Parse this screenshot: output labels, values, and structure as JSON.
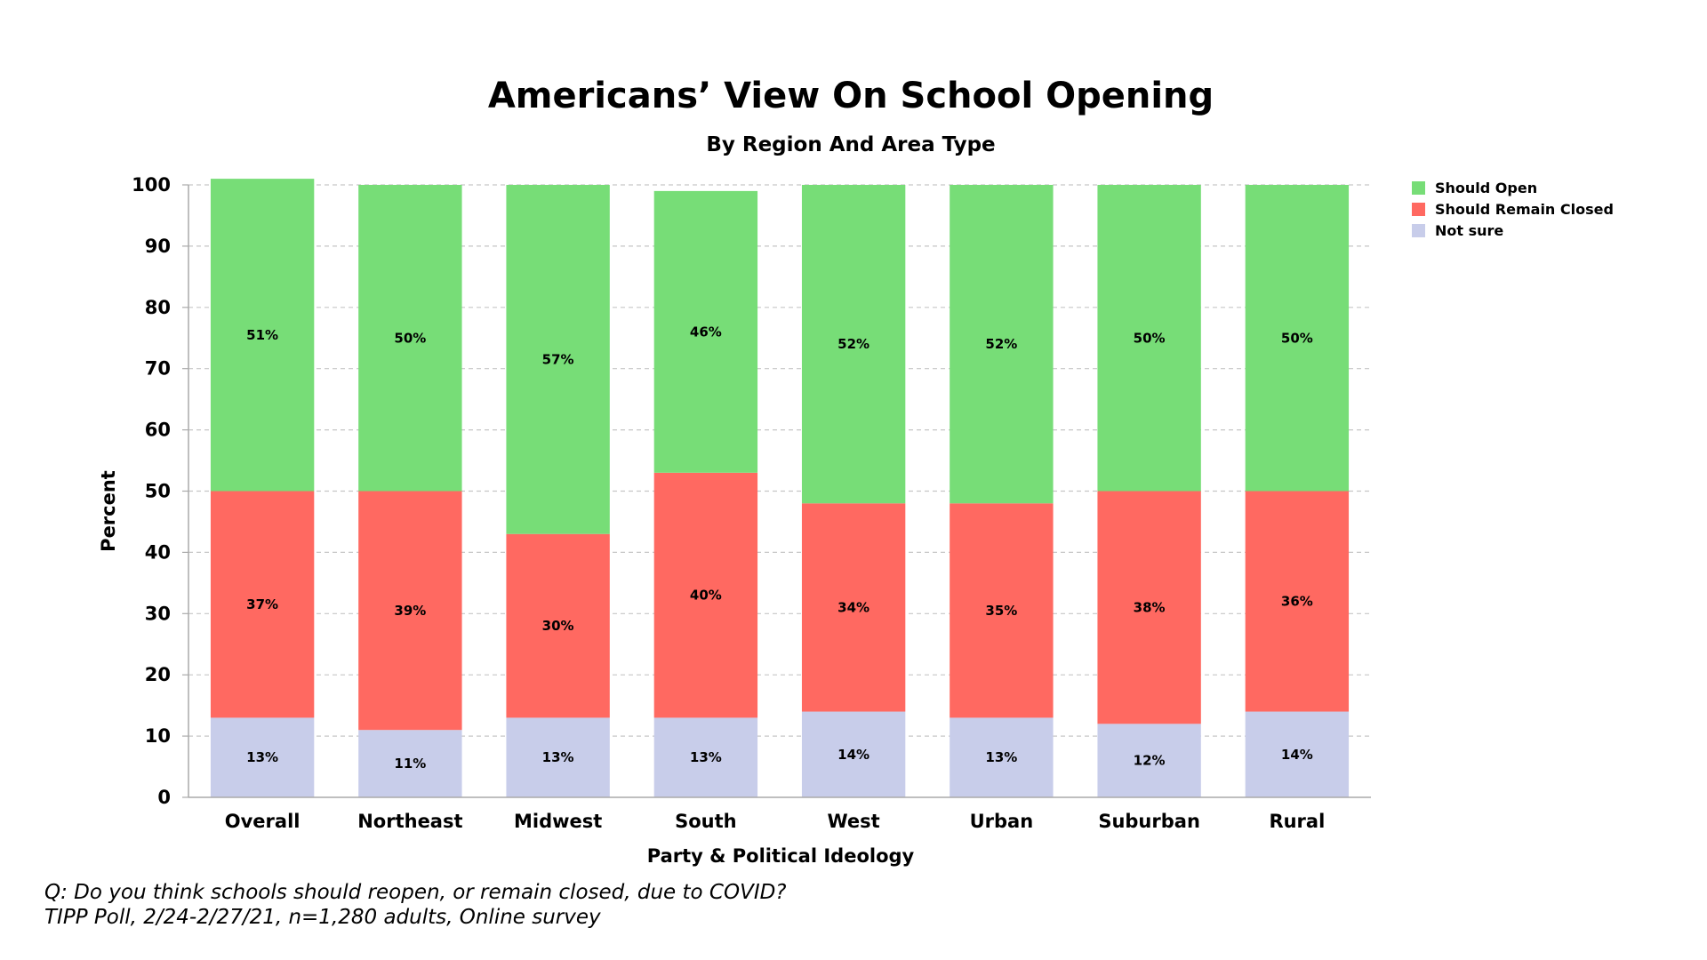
{
  "chart_data": {
    "type": "bar",
    "stacked": true,
    "title": "Americans’ View On School Opening",
    "subtitle": "By Region And Area Type",
    "xlabel": "Party & Political Ideology",
    "ylabel": "Percent",
    "ylim": [
      0,
      100
    ],
    "yticks": [
      0,
      10,
      20,
      30,
      40,
      50,
      60,
      70,
      80,
      90,
      100
    ],
    "grid": true,
    "legend_position": "top-right",
    "categories": [
      "Overall",
      "Northeast",
      "Midwest",
      "South",
      "West",
      "Urban",
      "Suburban",
      "Rural"
    ],
    "series": [
      {
        "name": "Not sure",
        "color": "#c8cdea",
        "values": [
          13,
          11,
          13,
          13,
          14,
          13,
          12,
          14
        ],
        "labels": [
          "13%",
          "11%",
          "13%",
          "13%",
          "14%",
          "13%",
          "12%",
          "14%"
        ]
      },
      {
        "name": "Should Remain Closed",
        "color": "#ff6961",
        "values": [
          37,
          39,
          30,
          40,
          34,
          35,
          38,
          36
        ],
        "labels": [
          "37%",
          "39%",
          "30%",
          "40%",
          "34%",
          "35%",
          "38%",
          "36%"
        ]
      },
      {
        "name": "Should Open",
        "color": "#77dd77",
        "values": [
          51,
          50,
          57,
          46,
          52,
          52,
          50,
          50
        ],
        "labels": [
          "51%",
          "50%",
          "57%",
          "46%",
          "52%",
          "52%",
          "50%",
          "50%"
        ]
      }
    ],
    "legend_order": [
      "Should Open",
      "Should Remain Closed",
      "Not sure"
    ]
  },
  "footnote": {
    "line1": "Q:  Do you think schools should reopen, or remain closed, due to COVID?",
    "line2": "TIPP Poll, 2/24-2/27/21, n=1,280 adults, Online survey"
  }
}
